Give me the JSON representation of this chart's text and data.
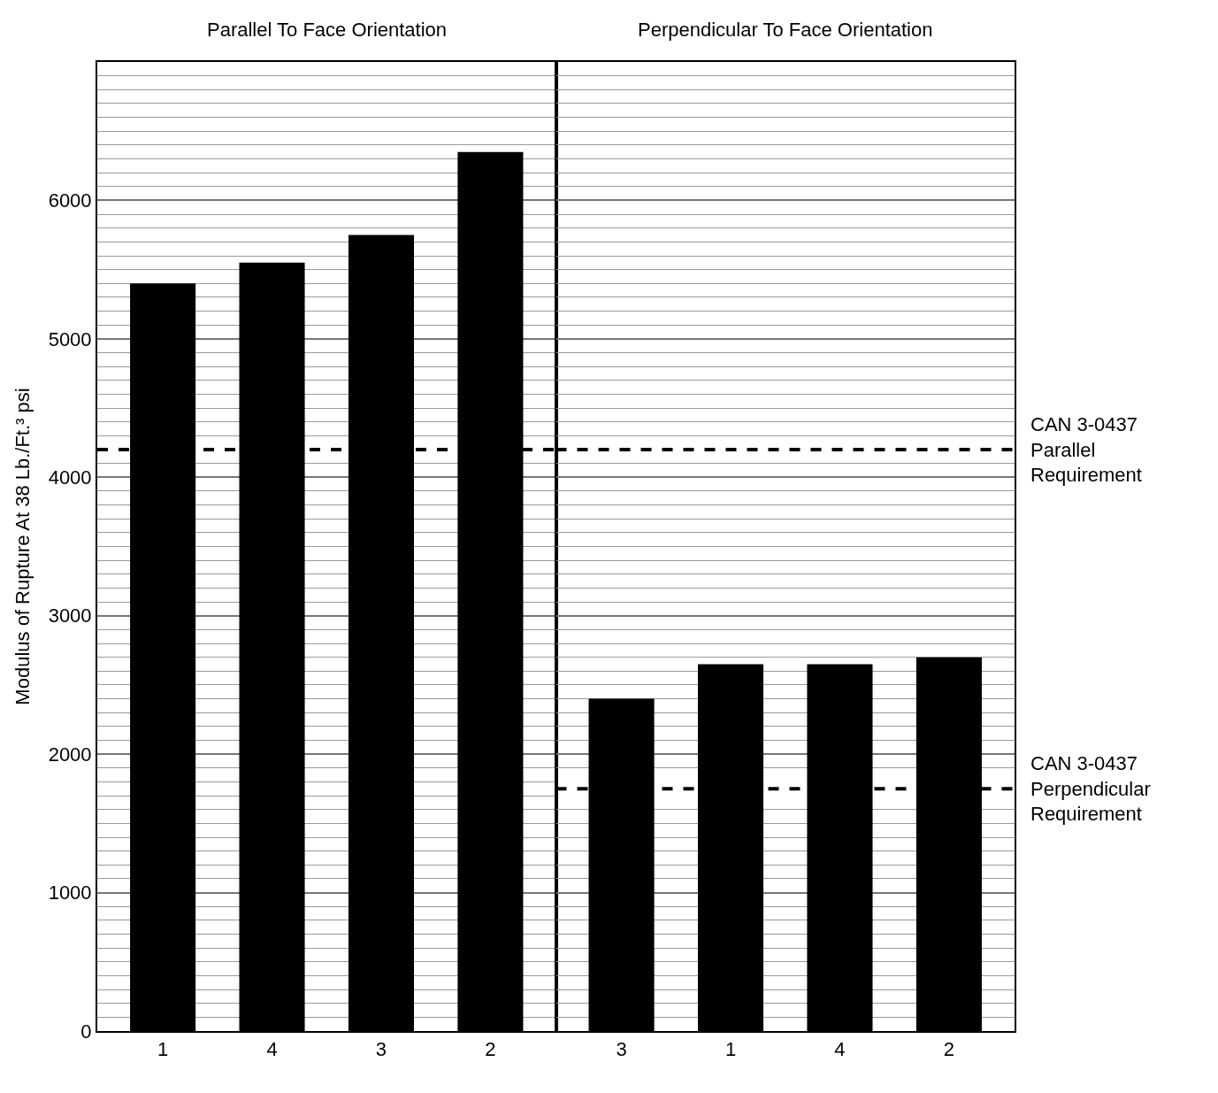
{
  "chart_data": [
    {
      "type": "bar",
      "title": "Parallel To Face Orientation",
      "ylabel": "Modulus of Rupture At 38 Lb./Ft.³ psi",
      "categories": [
        "1",
        "4",
        "3",
        "2"
      ],
      "values": [
        5400,
        5550,
        5750,
        6350
      ],
      "color": "#000000",
      "ylim": [
        0,
        7000
      ],
      "yticks": [
        0,
        1000,
        2000,
        3000,
        4000,
        5000,
        6000
      ],
      "grid": true,
      "ref_lines": [
        {
          "axis": "y",
          "value": 4200,
          "label": null,
          "line_style": "dashed"
        }
      ]
    },
    {
      "type": "bar",
      "title": "Perpendicular To Face Orientation",
      "categories": [
        "3",
        "1",
        "4",
        "2"
      ],
      "values": [
        2400,
        2650,
        2650,
        2700
      ],
      "color": "#000000",
      "ylim": [
        0,
        7000
      ],
      "yticks": [
        0,
        1000,
        2000,
        3000,
        4000,
        5000,
        6000
      ],
      "grid": true,
      "tick_labels": "x",
      "ref_lines": [
        {
          "axis": "y",
          "value": 4200,
          "label": "CAN 3-0437 Parallel Requirement",
          "line_style": "dashed"
        },
        {
          "axis": "y",
          "value": 1750,
          "label": "CAN 3-0437 Perpendicular Requirement",
          "line_style": "dashed"
        }
      ]
    }
  ]
}
